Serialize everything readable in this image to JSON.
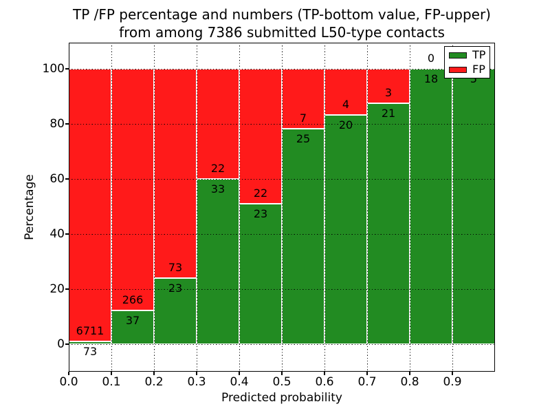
{
  "figure": {
    "title_line1": "TP /FP percentage and numbers (TP-bottom value, FP-upper)",
    "title_line2": "from among 7386 submitted L50-type contacts",
    "xlabel": "Predicted probability",
    "ylabel": "Percentage"
  },
  "colors": {
    "tp_green": "#228B22",
    "fp_red": "#FF1A1A",
    "grid": "#000000",
    "bar_edge": "#FFFFFF",
    "background": "#FFFFFF",
    "text": "#000000"
  },
  "chart_data": {
    "type": "bar",
    "subtype": "stacked-100-percent-histogram",
    "title": "TP /FP percentage and numbers (TP-bottom value, FP-upper) from among 7386 submitted L50-type contacts",
    "xlabel": "Predicted probability",
    "ylabel": "Percentage",
    "total_submitted_contacts": 7386,
    "xlim": [
      0.0,
      1.0
    ],
    "ylim": [
      -10,
      110
    ],
    "x_ticks": [
      "0.0",
      "0.1",
      "0.2",
      "0.3",
      "0.4",
      "0.5",
      "0.6",
      "0.7",
      "0.8",
      "0.9"
    ],
    "y_ticks": [
      0,
      20,
      40,
      60,
      80,
      100
    ],
    "grid": "dotted-black",
    "legend_position": "upper-right",
    "legend": [
      {
        "label": "TP",
        "color": "#228B22"
      },
      {
        "label": "FP",
        "color": "#FF1A1A"
      }
    ],
    "bin_width": 0.1,
    "bars": [
      {
        "bin_start": 0.0,
        "bin_end": 0.1,
        "tp_count": 73,
        "fp_count": 6711,
        "tp_pct": 1.08,
        "fp_pct": 98.92,
        "tp_label": "73",
        "fp_label": "6711"
      },
      {
        "bin_start": 0.1,
        "bin_end": 0.2,
        "tp_count": 37,
        "fp_count": 266,
        "tp_pct": 12.21,
        "fp_pct": 87.79,
        "tp_label": "37",
        "fp_label": "266"
      },
      {
        "bin_start": 0.2,
        "bin_end": 0.3,
        "tp_count": 23,
        "fp_count": 73,
        "tp_pct": 23.96,
        "fp_pct": 76.04,
        "tp_label": "23",
        "fp_label": "73"
      },
      {
        "bin_start": 0.3,
        "bin_end": 0.4,
        "tp_count": 33,
        "fp_count": 22,
        "tp_pct": 60.0,
        "fp_pct": 40.0,
        "tp_label": "33",
        "fp_label": "22"
      },
      {
        "bin_start": 0.4,
        "bin_end": 0.5,
        "tp_count": 23,
        "fp_count": 22,
        "tp_pct": 51.11,
        "fp_pct": 48.89,
        "tp_label": "23",
        "fp_label": "22"
      },
      {
        "bin_start": 0.5,
        "bin_end": 0.6,
        "tp_count": 25,
        "fp_count": 7,
        "tp_pct": 78.13,
        "fp_pct": 21.87,
        "tp_label": "25",
        "fp_label": "7"
      },
      {
        "bin_start": 0.6,
        "bin_end": 0.7,
        "tp_count": 20,
        "fp_count": 4,
        "tp_pct": 83.33,
        "fp_pct": 16.67,
        "tp_label": "20",
        "fp_label": "4"
      },
      {
        "bin_start": 0.7,
        "bin_end": 0.8,
        "tp_count": 21,
        "fp_count": 3,
        "tp_pct": 87.5,
        "fp_pct": 12.5,
        "tp_label": "21",
        "fp_label": "3"
      },
      {
        "bin_start": 0.8,
        "bin_end": 0.9,
        "tp_count": 18,
        "fp_count": 0,
        "tp_pct": 100.0,
        "fp_pct": 0.0,
        "tp_label": "18",
        "fp_label": "0"
      },
      {
        "bin_start": 0.9,
        "bin_end": 1.0,
        "tp_count": 5,
        "fp_count": 0,
        "tp_pct": 100.0,
        "fp_pct": 0.0,
        "tp_label": "5",
        "fp_label": ""
      }
    ]
  }
}
